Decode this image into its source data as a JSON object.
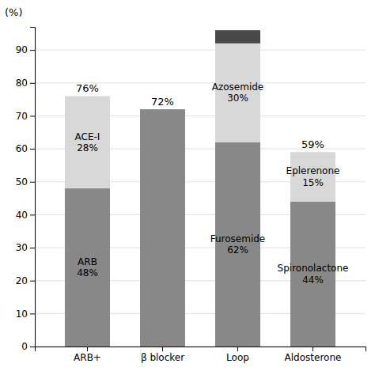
{
  "chart_data": {
    "type": "bar",
    "stacked": true,
    "data_labels": true,
    "grid": true,
    "y_label": "(%)",
    "categories": [
      "ARB+",
      "β blocker",
      "Loop",
      "Aldosterone"
    ],
    "series": [
      {
        "color": "#888888",
        "values": [
          48,
          72,
          62,
          44
        ],
        "value_labels": [
          "ARB\n48%",
          null,
          "Furosemide\n62%",
          "Spironolactone\n44%"
        ]
      },
      {
        "color": "#d8d8d8",
        "values": [
          28,
          null,
          30,
          15
        ],
        "value_labels": [
          "ACE-I\n28%",
          null,
          "Azosemide\n30%",
          "Eplerenone\n15%"
        ]
      },
      {
        "color": "#484848",
        "values": [
          null,
          null,
          4,
          null
        ],
        "value_labels": [
          null,
          null,
          null,
          null
        ]
      }
    ],
    "totals": [
      76,
      72,
      null,
      59
    ],
    "total_labels": [
      "76%",
      "72%",
      null,
      "59%"
    ],
    "ylim": [
      0,
      97
    ],
    "yticks": [
      0,
      10,
      20,
      30,
      40,
      50,
      60,
      70,
      80,
      90
    ]
  }
}
